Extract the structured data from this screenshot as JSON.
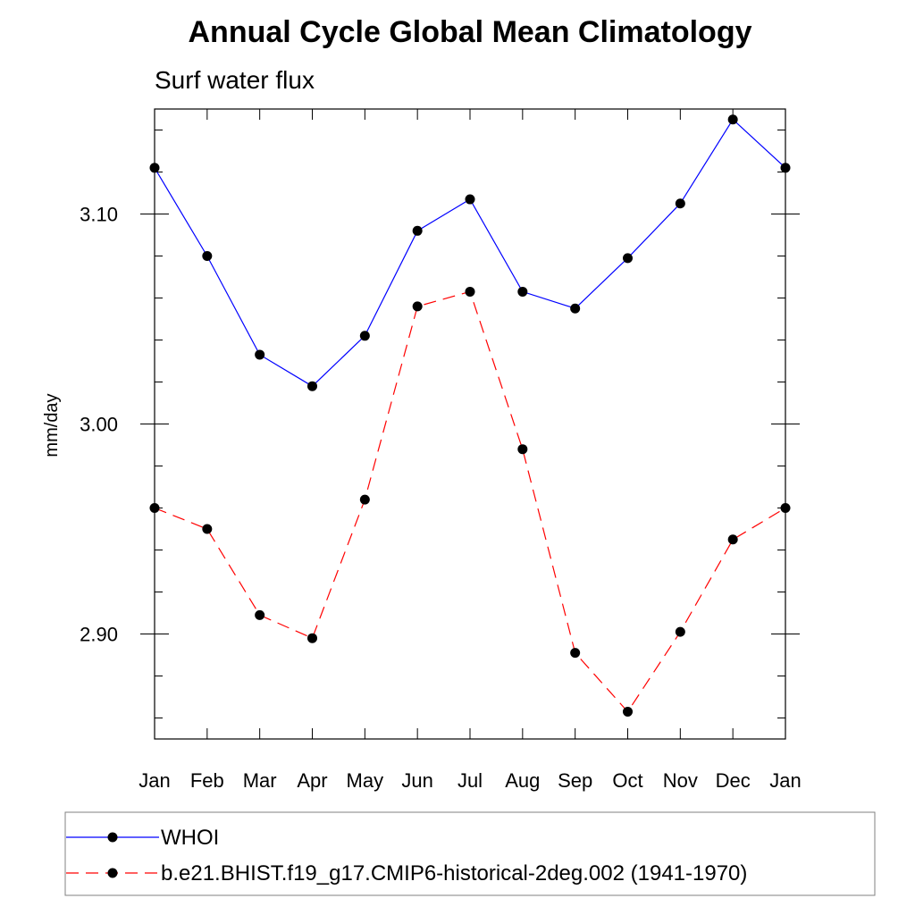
{
  "chart_data": {
    "type": "line",
    "title": "Annual Cycle Global Mean Climatology",
    "subtitle": "Surf water flux",
    "ylabel": "mm/day",
    "xlabel": "",
    "categories": [
      "Jan",
      "Feb",
      "Mar",
      "Apr",
      "May",
      "Jun",
      "Jul",
      "Aug",
      "Sep",
      "Oct",
      "Nov",
      "Dec",
      "Jan"
    ],
    "ylim": [
      2.85,
      3.15
    ],
    "yticks": [
      {
        "value": 2.9,
        "label": "2.90"
      },
      {
        "value": 3.0,
        "label": "3.00"
      },
      {
        "value": 3.1,
        "label": "3.10"
      }
    ],
    "y_minor_step": 0.02,
    "grid": false,
    "legend_position": "bottom",
    "series": [
      {
        "name": "WHOI",
        "color": "#0000ff",
        "dash": "solid",
        "marker": "circle",
        "values": [
          3.122,
          3.08,
          3.033,
          3.018,
          3.042,
          3.092,
          3.107,
          3.063,
          3.055,
          3.079,
          3.105,
          3.145,
          3.122
        ]
      },
      {
        "name": "b.e21.BHIST.f19_g17.CMIP6-historical-2deg.002 (1941-1970)",
        "color": "#ff0000",
        "dash": "dashed",
        "marker": "circle",
        "values": [
          2.96,
          2.95,
          2.909,
          2.898,
          2.964,
          3.056,
          3.063,
          2.988,
          2.891,
          2.863,
          2.901,
          2.945,
          2.96
        ]
      }
    ]
  }
}
